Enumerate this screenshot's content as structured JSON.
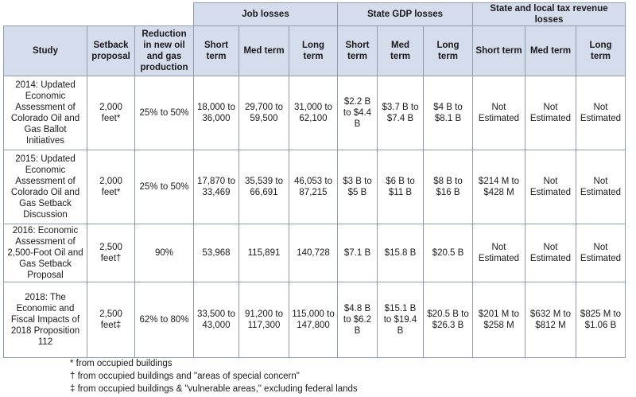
{
  "headers": {
    "study": "Study",
    "setback": "Setback proposal",
    "reduction": "Reduction in new oil and gas production",
    "groups": [
      "Job losses",
      "State GDP losses",
      "State and local tax revenue losses"
    ],
    "terms": [
      "Short term",
      "Med term",
      "Long term"
    ]
  },
  "rows": [
    {
      "study": "2014: Updated Economic Assessment of Colorado Oil and Gas Ballot Initiatives",
      "setback": "2,000 feet*",
      "reduction": "25% to 50%",
      "jobs": [
        "18,000 to 36,000",
        "29,700 to 59,500",
        "31,000 to 62,100"
      ],
      "gdp": [
        "$2.2 B to $4.4 B",
        "$3.7 B to $7.4 B",
        "$4 B to $8.1 B"
      ],
      "tax": [
        "Not Estimated",
        "Not Estimated",
        "Not Estimated"
      ]
    },
    {
      "study": "2015: Updated Economic Assessment of Colorado Oil and Gas Setback Discussion",
      "setback": "2,000 feet*",
      "reduction": "25% to 50%",
      "jobs": [
        "17,870 to 33,469",
        "35,539 to 66,691",
        "46,053 to 87,215"
      ],
      "gdp": [
        "$3 B to $5 B",
        "$6 B to $11 B",
        "$8 B to $16 B"
      ],
      "tax": [
        "$214 M to $428 M",
        "Not Estimated",
        "Not Estimated"
      ]
    },
    {
      "study": "2016: Economic Assessment of 2,500-Foot Oil and Gas Setback Proposal",
      "setback": "2,500 feet†",
      "reduction": "90%",
      "jobs": [
        "53,968",
        "115,891",
        "140,728"
      ],
      "gdp": [
        "$7.1 B",
        "$15.8 B",
        "$20.5 B"
      ],
      "tax": [
        "Not Estimated",
        "Not Estimated",
        "Not Estimated"
      ]
    },
    {
      "study": "2018: The Economic and Fiscal Impacts of 2018 Proposition 112",
      "setback": "2,500 feet‡",
      "reduction": "62% to 80%",
      "jobs": [
        "33,500 to 43,000",
        "91,200 to 117,300",
        "115,000 to 147,800"
      ],
      "gdp": [
        "$4.8 B to $6.2 B",
        "$15.1 B to $19.4 B",
        "$20.5 B to $26.3 B"
      ],
      "tax": [
        "$201 M to $258 M",
        "$632 M to $812 M",
        "$825 M to $1.06 B"
      ]
    }
  ],
  "footnotes": [
    "* from occupied buildings",
    "† from occupied buildings and \"areas of special concern\"",
    "‡ from occupied buildings & \"vulnerable areas,\" excluding federal lands"
  ]
}
